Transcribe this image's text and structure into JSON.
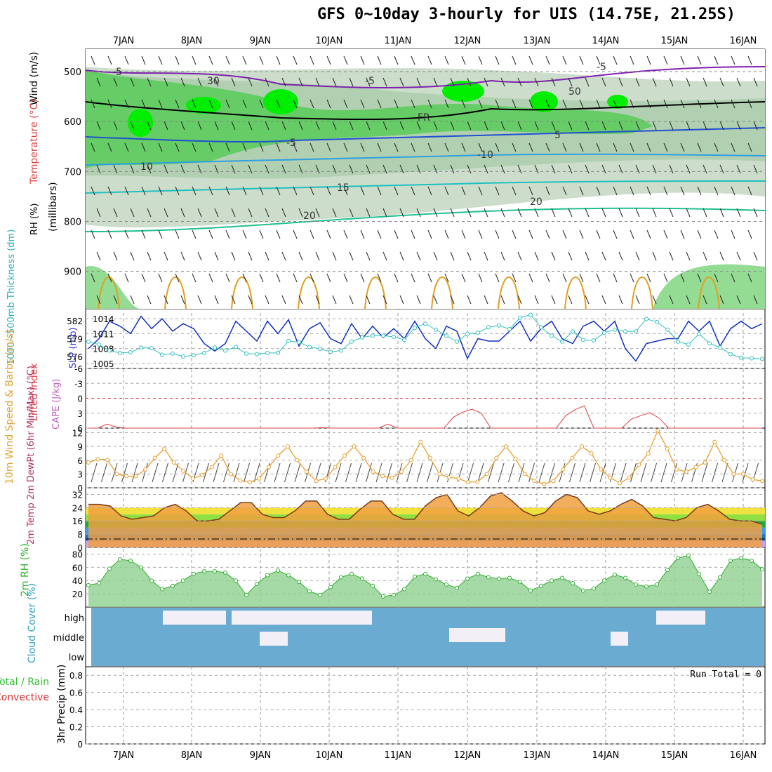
{
  "title": "GFS 0~10day 3-hourly for UIS (14.75E, 21.25S)",
  "run_total_text": "Run Total = 0",
  "colors": {
    "rh_dark": "#00ee00",
    "rh_mid": "#66cc66",
    "rh_light": "#ccddcc",
    "cloud": "#6aabd2",
    "temp_fill": "#f0a040",
    "wind_line": "#e8a030",
    "slp_line": "#1030c0",
    "thick_line": "#30c0c0",
    "li_line": "#e04040",
    "rh2m": "#30b030",
    "precip_total": "#30c030",
    "precip_conv": "#e03030"
  },
  "chart_data": [
    {
      "name": "upper-air cross section",
      "type": "heatmap",
      "x_dates": [
        "7JAN",
        "8JAN",
        "9JAN",
        "10JAN",
        "11JAN",
        "12JAN",
        "13JAN",
        "14JAN",
        "15JAN",
        "16JAN"
      ],
      "ylabel_lines": [
        "Wind (m/s)",
        "Temperature (°C)",
        "RH (%)",
        "(millibars)"
      ],
      "y_ticks": [
        500,
        600,
        700,
        800,
        900
      ],
      "contour_labels": [
        "-5",
        "-5",
        "-5",
        "FR",
        "-5",
        "5",
        "-10",
        "10",
        "15",
        "20",
        "20",
        "-10",
        "-5",
        "10",
        "30",
        "50"
      ]
    },
    {
      "name": "SLP and thickness",
      "type": "line",
      "ylabel_left": "1000~500mb Thickness (dm)",
      "ylabel_right": "SLP (mb)",
      "left_ticks": [
        582,
        579,
        576
      ],
      "right_ticks": [
        1014,
        1011,
        1008,
        1005
      ],
      "series": [
        {
          "name": "SLP",
          "values": [
            1008,
            1010,
            1013.5,
            1012.5,
            1011,
            1014.5,
            1012,
            1014,
            1011.5,
            1013,
            1012,
            1009,
            1007.5,
            1009,
            1013.5,
            1011.5,
            1009.5,
            1013.5,
            1011,
            1013.8,
            1008.5,
            1012,
            1013.2,
            1010,
            1009,
            1013,
            1010,
            1012.5,
            1010.2,
            1012,
            1010,
            1013.5,
            1010,
            1008,
            1012.5,
            1011.5,
            1006,
            1010,
            1009.5,
            1009.5,
            1011.5,
            1013.5,
            1009.5,
            1012,
            1013.5,
            1010,
            1009,
            1012.5,
            1013.5,
            1011.5,
            1013.5,
            1008,
            1005.5,
            1009,
            1009.5,
            1010,
            1010,
            1013.5,
            1011.5,
            1013.5,
            1008.5,
            1012,
            1013.5,
            1012,
            1013
          ]
        },
        {
          "name": "Thickness",
          "values": [
            578.5,
            578,
            577,
            576.6,
            576.7,
            577.5,
            577.4,
            576.3,
            576.5,
            576,
            576.2,
            576.6,
            577.5,
            577,
            577.6,
            576.5,
            576.4,
            576.6,
            576.6,
            578.6,
            578.4,
            577.6,
            577.3,
            576.8,
            577,
            578.5,
            579.2,
            579.5,
            579.5,
            579.3,
            578.8,
            580.8,
            581.5,
            580.5,
            579.5,
            578.5,
            579.8,
            580,
            580.9,
            581.2,
            580.6,
            582.5,
            583,
            580.9,
            579.5,
            578.5,
            580.2,
            578.8,
            578.7,
            580,
            580.5,
            580.2,
            580.2,
            582.3,
            581.8,
            580.5,
            578.5,
            578,
            579.8,
            578.2,
            577.5,
            576.4,
            575.8,
            575.7,
            575.6
          ]
        }
      ]
    },
    {
      "name": "Lifted index and CAPE",
      "type": "line",
      "ylabel_left": "Lifted Index",
      "ylabel_right": "CAPE (J/kg)",
      "y_ticks": [
        "-6",
        "-3",
        "0",
        "3",
        "6"
      ],
      "series": [
        {
          "name": "Lifted Index",
          "values": [
            6,
            6,
            5.2,
            5.8,
            6,
            6,
            6,
            6,
            6,
            6,
            6,
            6,
            6,
            6,
            6,
            6,
            6,
            6,
            6,
            6,
            6,
            6,
            6,
            6,
            6,
            5.9,
            6,
            6,
            6,
            6,
            6,
            6,
            5.2,
            6,
            6,
            6,
            6,
            6,
            6,
            3.8,
            2.8,
            2.2,
            3,
            6,
            6,
            6,
            6,
            6,
            6,
            6,
            6,
            3.5,
            2.3,
            1.5,
            6,
            6,
            6,
            6,
            4.2,
            3.5,
            2.9,
            4,
            6,
            6,
            6,
            6,
            6,
            6,
            6,
            6,
            6,
            6,
            6
          ]
        }
      ]
    },
    {
      "name": "10m wind speed",
      "type": "line",
      "ylabel": "10m Wind Speed & Barbs (m/s)",
      "y_ticks": [
        0,
        3,
        6,
        9,
        12
      ],
      "ylim": [
        0,
        13
      ],
      "series": [
        {
          "name": "Wind speed",
          "values": [
            5.5,
            6.2,
            6.1,
            3,
            2.5,
            2.5,
            4,
            6.5,
            8.5,
            5.5,
            3.7,
            2,
            2.8,
            4.5,
            7,
            3,
            1.6,
            1.2,
            2,
            4.5,
            7,
            9,
            6,
            3.5,
            1.5,
            2,
            4.5,
            7,
            9,
            6.5,
            3.5,
            2.5,
            2.2,
            3.5,
            6,
            10,
            6.5,
            3,
            2.3,
            2,
            1.2,
            1.3,
            3,
            6.5,
            9,
            6.3,
            3,
            1.5,
            0.8,
            1.5,
            4,
            6.5,
            9,
            7.5,
            4,
            2.2,
            1,
            2.2,
            5,
            7.5,
            12.5,
            8.5,
            4,
            3.5,
            4.5,
            5.5,
            10,
            6,
            3,
            3,
            1.8,
            1.5
          ]
        }
      ]
    },
    {
      "name": "2m temperature",
      "type": "area",
      "ylabel": "2m Temp 2m DewPt (6hr Min/Max) (°C)",
      "y_ticks": [
        0,
        8,
        16,
        24,
        32
      ],
      "ylim": [
        0,
        36
      ],
      "series": [
        {
          "name": "Temp",
          "values": [
            26,
            26,
            25,
            19,
            17,
            18,
            19,
            24,
            26,
            22,
            16,
            16,
            17,
            22,
            27,
            27,
            20,
            18,
            18,
            22,
            28,
            28,
            20,
            17,
            17,
            23,
            28,
            28,
            20,
            17,
            17,
            25,
            30,
            32,
            22,
            19,
            24,
            31,
            33,
            28,
            22,
            19,
            21,
            28,
            32,
            30,
            22,
            20,
            22,
            26,
            29,
            25,
            18,
            17,
            16,
            18,
            24,
            26,
            22,
            17,
            16,
            16,
            14
          ]
        }
      ]
    },
    {
      "name": "2m relative humidity",
      "type": "area",
      "ylabel": "2m RH (%)",
      "y_ticks": [
        20,
        40,
        60,
        80
      ],
      "ylim": [
        0,
        90
      ],
      "series": [
        {
          "name": "RH",
          "values": [
            33,
            36,
            58,
            72,
            70,
            60,
            40,
            27,
            32,
            40,
            50,
            54,
            54,
            52,
            40,
            18,
            35,
            48,
            55,
            48,
            38,
            24,
            18,
            30,
            45,
            50,
            43,
            32,
            16,
            18,
            27,
            46,
            50,
            42,
            34,
            29,
            43,
            50,
            45,
            43,
            44,
            38,
            25,
            32,
            40,
            44,
            36,
            25,
            28,
            40,
            49,
            44,
            34,
            31,
            34,
            56,
            74,
            78,
            50,
            23,
            45,
            70,
            74,
            70,
            57
          ]
        }
      ]
    },
    {
      "name": "cloud cover",
      "type": "bar",
      "ylabel": "Cloud Cover (%)",
      "levels": [
        "high",
        "middle",
        "low"
      ]
    },
    {
      "name": "3hr precip",
      "type": "bar",
      "ylabel": "3hr Precip (mm)",
      "legend": [
        "Total / Rain",
        "Convective"
      ],
      "y_ticks": [
        "0",
        "0.2",
        "0.4",
        "0.6",
        "0.8"
      ],
      "ylim": [
        0,
        0.9
      ]
    }
  ]
}
